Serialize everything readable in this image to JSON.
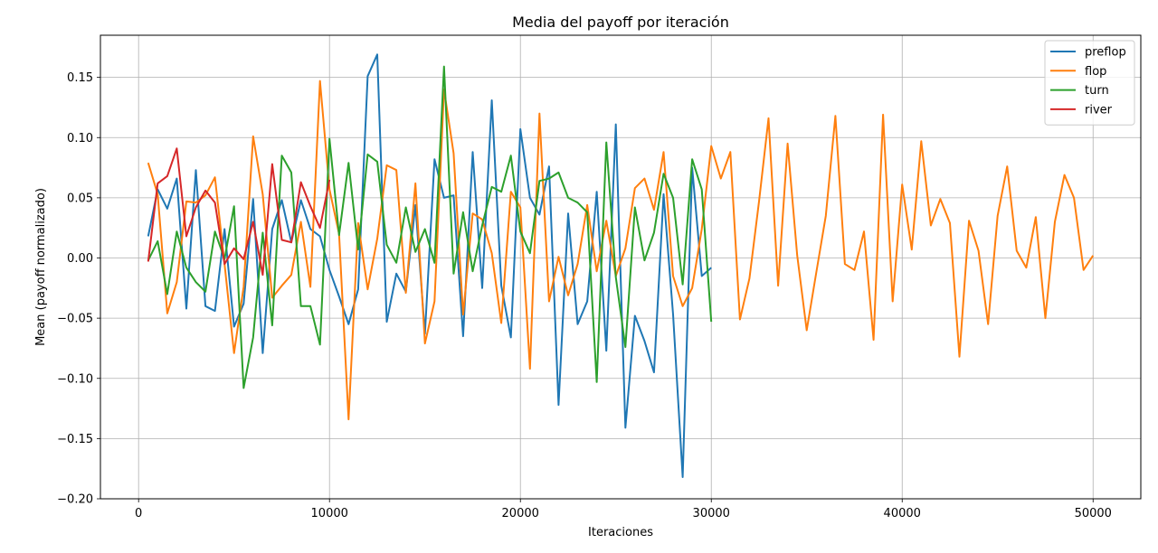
{
  "chart_data": {
    "type": "line",
    "title": "Media del payoff por iteración",
    "xlabel": "Iteraciones",
    "ylabel": "Mean (payoff normalizado)",
    "xlim": [
      -2000,
      52500
    ],
    "ylim": [
      -0.2,
      0.185
    ],
    "xticks": [
      0,
      10000,
      20000,
      30000,
      40000,
      50000
    ],
    "yticks": [
      -0.2,
      -0.15,
      -0.1,
      -0.05,
      0.0,
      0.05,
      0.1,
      0.15
    ],
    "ytick_labels": [
      "−0.20",
      "−0.15",
      "−0.10",
      "−0.05",
      "0.00",
      "0.05",
      "0.10",
      "0.15"
    ],
    "grid": true,
    "legend_position": "top-right",
    "series": [
      {
        "name": "preflop",
        "color": "#1f77b4",
        "x": [
          500,
          1000,
          1500,
          2000,
          2500,
          3000,
          3500,
          4000,
          4500,
          5000,
          5500,
          6000,
          6500,
          7000,
          7500,
          8000,
          8500,
          9000,
          9500,
          10000,
          10500,
          11000,
          11500,
          12000,
          12500,
          13000,
          13500,
          14000,
          14500,
          15000,
          15500,
          16000,
          16500,
          17000,
          17500,
          18000,
          18500,
          19000,
          19500,
          20000,
          20500,
          21000,
          21500,
          22000,
          22500,
          23000,
          23500,
          24000,
          24500,
          25000,
          25500,
          26000,
          26500,
          27000,
          27500,
          28000,
          28500,
          29000,
          29500,
          30000
        ],
        "y": [
          0.018,
          0.057,
          0.041,
          0.066,
          -0.042,
          0.073,
          -0.04,
          -0.044,
          0.024,
          -0.057,
          -0.038,
          0.049,
          -0.079,
          0.024,
          0.048,
          0.013,
          0.048,
          0.024,
          0.018,
          -0.01,
          -0.032,
          -0.055,
          -0.026,
          0.151,
          0.169,
          -0.053,
          -0.013,
          -0.028,
          0.044,
          -0.063,
          0.082,
          0.05,
          0.052,
          -0.065,
          0.088,
          -0.025,
          0.131,
          -0.023,
          -0.066,
          0.107,
          0.05,
          0.036,
          0.076,
          -0.122,
          0.037,
          -0.055,
          -0.036,
          0.055,
          -0.077,
          0.111,
          -0.141,
          -0.048,
          -0.069,
          -0.095,
          0.053,
          -0.047,
          -0.182,
          0.075,
          -0.015,
          -0.008
        ]
      },
      {
        "name": "flop",
        "color": "#ff7f0e",
        "x": [
          500,
          1000,
          1500,
          2000,
          2500,
          3000,
          3500,
          4000,
          4500,
          5000,
          5500,
          6000,
          6500,
          7000,
          7500,
          8000,
          8500,
          9000,
          9500,
          10000,
          10500,
          11000,
          11500,
          12000,
          12500,
          13000,
          13500,
          14000,
          14500,
          15000,
          15500,
          16000,
          16500,
          17000,
          17500,
          18000,
          18500,
          19000,
          19500,
          20000,
          20500,
          21000,
          21500,
          22000,
          22500,
          23000,
          23500,
          24000,
          24500,
          25000,
          25500,
          26000,
          26500,
          27000,
          27500,
          28000,
          28500,
          29000,
          29500,
          30000,
          30500,
          31000,
          31500,
          32000,
          32500,
          33000,
          33500,
          34000,
          34500,
          35000,
          35500,
          36000,
          36500,
          37000,
          37500,
          38000,
          38500,
          39000,
          39500,
          40000,
          40500,
          41000,
          41500,
          42000,
          42500,
          43000,
          43500,
          44000,
          44500,
          45000,
          45500,
          46000,
          46500,
          47000,
          47500,
          48000,
          48500,
          49000,
          49500,
          50000
        ],
        "y": [
          0.079,
          0.053,
          -0.046,
          -0.02,
          0.047,
          0.046,
          0.052,
          0.067,
          -0.005,
          -0.079,
          -0.024,
          0.101,
          0.053,
          -0.033,
          -0.023,
          -0.014,
          0.03,
          -0.024,
          0.147,
          0.057,
          0.02,
          -0.134,
          0.029,
          -0.026,
          0.016,
          0.077,
          0.073,
          -0.029,
          0.062,
          -0.071,
          -0.036,
          0.14,
          0.087,
          -0.047,
          0.037,
          0.032,
          0.004,
          -0.054,
          0.055,
          0.042,
          -0.092,
          0.12,
          -0.036,
          0.001,
          -0.031,
          -0.005,
          0.044,
          -0.011,
          0.031,
          -0.015,
          0.008,
          0.058,
          0.066,
          0.04,
          0.088,
          -0.015,
          -0.04,
          -0.025,
          0.024,
          0.093,
          0.066,
          0.088,
          -0.051,
          -0.017,
          0.047,
          0.116,
          -0.023,
          0.095,
          0.002,
          -0.06,
          -0.012,
          0.035,
          0.118,
          -0.005,
          -0.01,
          0.022,
          -0.068,
          0.119,
          -0.036,
          0.061,
          0.007,
          0.097,
          0.027,
          0.049,
          0.029,
          -0.082,
          0.031,
          0.006,
          -0.055,
          0.035,
          0.076,
          0.006,
          -0.008,
          0.034,
          -0.05,
          0.03,
          0.069,
          0.05,
          -0.01,
          0.002
        ]
      },
      {
        "name": "turn",
        "color": "#2ca02c",
        "x": [
          500,
          1000,
          1500,
          2000,
          2500,
          3000,
          3500,
          4000,
          4500,
          5000,
          5500,
          6000,
          6500,
          7000,
          7500,
          8000,
          8500,
          9000,
          9500,
          10000,
          10500,
          11000,
          11500,
          12000,
          12500,
          13000,
          13500,
          14000,
          14500,
          15000,
          15500,
          16000,
          16500,
          17000,
          17500,
          18000,
          18500,
          19000,
          19500,
          20000,
          20500,
          21000,
          21500,
          22000,
          22500,
          23000,
          23500,
          24000,
          24500,
          25000,
          25500,
          26000,
          26500,
          27000,
          27500,
          28000,
          28500,
          29000,
          29500,
          30000
        ],
        "y": [
          -0.002,
          0.014,
          -0.03,
          0.022,
          -0.008,
          -0.02,
          -0.028,
          0.022,
          -0.001,
          0.043,
          -0.108,
          -0.066,
          0.021,
          -0.056,
          0.085,
          0.071,
          -0.04,
          -0.04,
          -0.072,
          0.099,
          0.019,
          0.079,
          0.007,
          0.086,
          0.08,
          0.011,
          -0.004,
          0.042,
          0.005,
          0.024,
          -0.004,
          0.159,
          -0.013,
          0.038,
          -0.011,
          0.027,
          0.059,
          0.055,
          0.085,
          0.022,
          0.004,
          0.064,
          0.066,
          0.071,
          0.05,
          0.046,
          0.038,
          -0.103,
          0.096,
          -0.016,
          -0.074,
          0.042,
          -0.002,
          0.021,
          0.07,
          0.05,
          -0.022,
          0.082,
          0.057,
          -0.053
        ]
      },
      {
        "name": "river",
        "color": "#d62728",
        "x": [
          500,
          1000,
          1500,
          2000,
          2500,
          3000,
          3500,
          4000,
          4500,
          5000,
          5500,
          6000,
          6500,
          7000,
          7500,
          8000,
          8500,
          9000,
          9500,
          10000
        ],
        "y": [
          -0.003,
          0.062,
          0.068,
          0.091,
          0.018,
          0.042,
          0.056,
          0.046,
          -0.005,
          0.008,
          -0.001,
          0.03,
          -0.014,
          0.078,
          0.015,
          0.013,
          0.063,
          0.043,
          0.025,
          0.065
        ]
      }
    ]
  }
}
